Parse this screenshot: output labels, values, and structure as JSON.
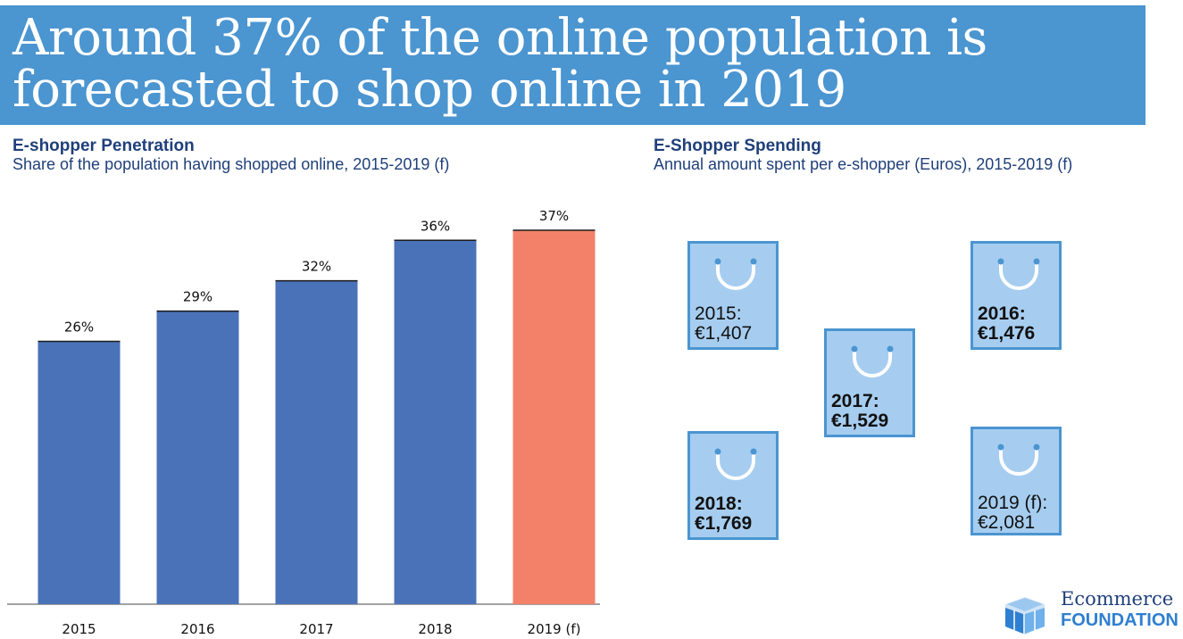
{
  "header": {
    "title": "Around 37% of the online population is forecasted to shop online in 2019"
  },
  "penetration": {
    "title": "E-shopper Penetration",
    "subtitle": "Share of the population having shopped online, 2015-2019 (f)"
  },
  "spending": {
    "title": "E-Shopper Spending",
    "subtitle": "Annual amount spent per e-shopper (Euros), 2015-2019 (f)",
    "bags": [
      {
        "year_label": "2015:",
        "amount_label": "€1,407",
        "value": 1407
      },
      {
        "year_label": "2016:",
        "amount_label": "€1,476",
        "value": 1476
      },
      {
        "year_label": "2017:",
        "amount_label": "€1,529",
        "value": 1529
      },
      {
        "year_label": "2018:",
        "amount_label": "€1,769",
        "value": 1769
      },
      {
        "year_label": "2019 (f):",
        "amount_label": "€2,081",
        "value": 2081
      }
    ]
  },
  "chart_data": {
    "type": "bar",
    "categories": [
      "2015",
      "2016",
      "2017",
      "2018",
      "2019 (f)"
    ],
    "values": [
      26,
      29,
      32,
      36,
      37
    ],
    "value_labels": [
      "26%",
      "29%",
      "32%",
      "36%",
      "37%"
    ],
    "unit": "%",
    "ylim": [
      0,
      40
    ],
    "grid": false,
    "colors": [
      "#4a72b8",
      "#4a72b8",
      "#4a72b8",
      "#4a72b8",
      "#f38169"
    ],
    "highlight_color": "#f38169"
  },
  "logo": {
    "line1": "Ecommerce",
    "line2": "FOUNDATION"
  }
}
